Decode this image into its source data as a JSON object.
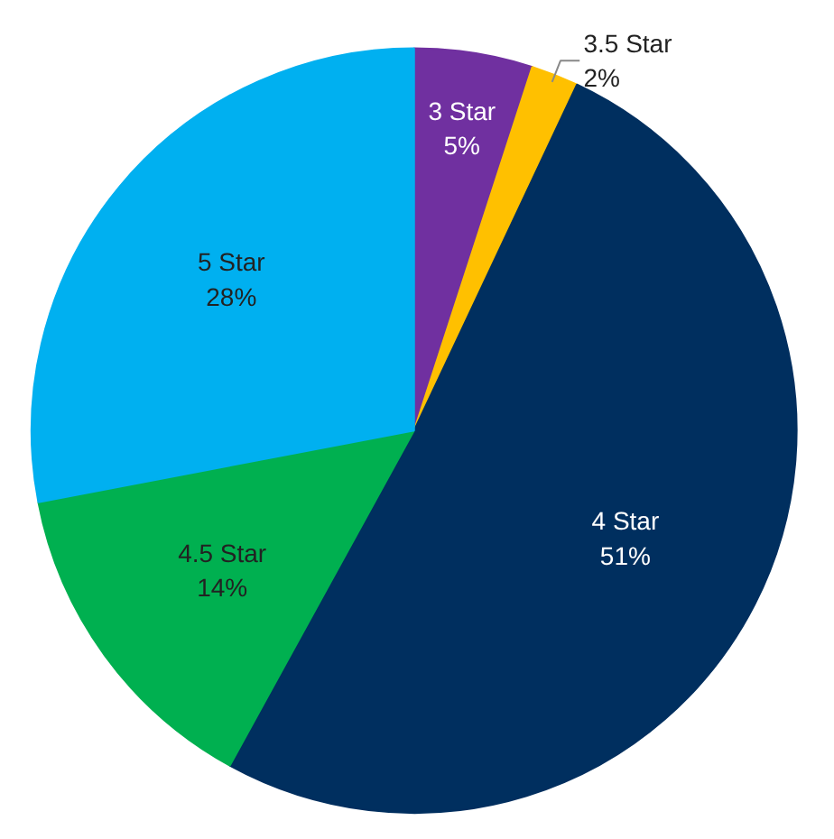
{
  "chart_data": {
    "type": "pie",
    "categories": [
      "3 Star",
      "3.5 Star",
      "4 Star",
      "4.5 Star",
      "5 Star"
    ],
    "values": [
      5,
      2,
      51,
      14,
      28
    ],
    "value_labels": [
      "5%",
      "2%",
      "51%",
      "14%",
      "28%"
    ],
    "colors": [
      "#7030a0",
      "#ffc000",
      "#002f5f",
      "#00b050",
      "#00b0f0"
    ],
    "legend": false
  }
}
